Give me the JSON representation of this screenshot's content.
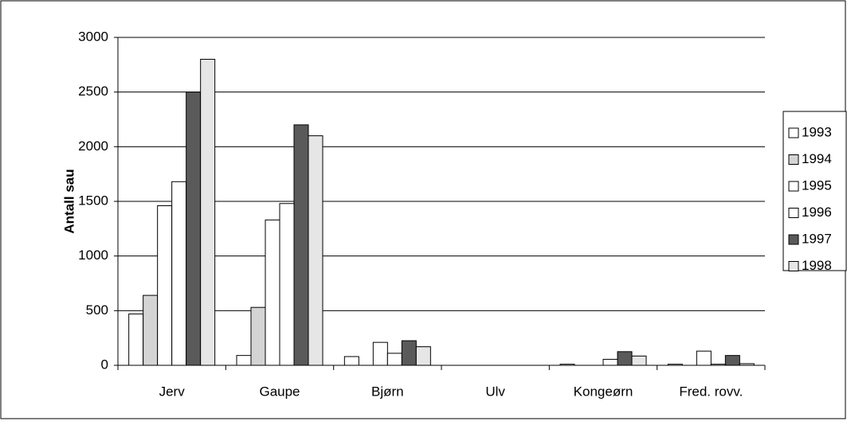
{
  "chart_data": {
    "type": "bar",
    "ylabel": "Antall sau",
    "categories": [
      "Jerv",
      "Gaupe",
      "Bjørn",
      "Ulv",
      "Kongeørn",
      "Fred. rovv."
    ],
    "series": [
      {
        "name": "1993",
        "color": "#ffffff",
        "values": [
          470,
          90,
          80,
          0,
          10,
          10
        ]
      },
      {
        "name": "1994",
        "color": "#d4d4d4",
        "values": [
          640,
          530,
          0,
          0,
          0,
          0
        ]
      },
      {
        "name": "1995",
        "color": "#ffffff",
        "values": [
          1460,
          1330,
          210,
          0,
          0,
          130
        ]
      },
      {
        "name": "1996",
        "color": "#ffffff",
        "values": [
          1680,
          1480,
          110,
          0,
          55,
          10
        ]
      },
      {
        "name": "1997",
        "color": "#5a5a5a",
        "values": [
          2500,
          2200,
          225,
          0,
          125,
          90
        ]
      },
      {
        "name": "1998",
        "color": "#e6e6e6",
        "values": [
          2800,
          2100,
          170,
          0,
          85,
          15
        ]
      }
    ],
    "ylim": [
      0,
      3000
    ],
    "yticks": [
      0,
      500,
      1000,
      1500,
      2000,
      2500,
      3000
    ],
    "grid": true,
    "legend": "right"
  }
}
